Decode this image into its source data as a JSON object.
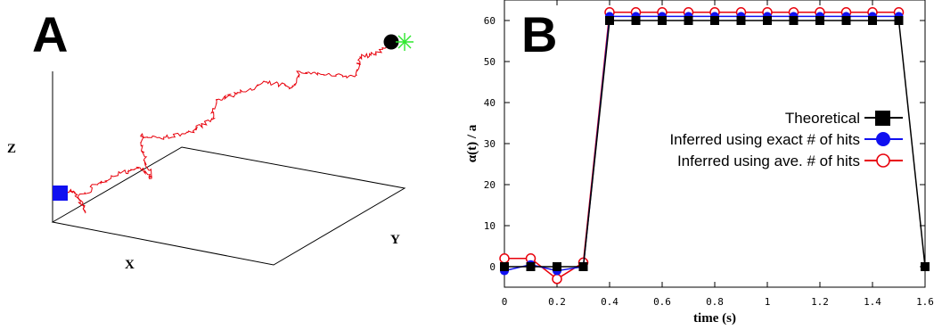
{
  "chart_data": [
    {
      "panel": "A",
      "type": "scatter",
      "title": "",
      "axis_labels": {
        "x": "X",
        "y": "Y",
        "z": "Z"
      },
      "trajectory_color": "#e8000b",
      "start_marker_color": "#1010f0",
      "end_marker_color": "#000000",
      "end_star_color": "#2ee82e"
    },
    {
      "panel": "B",
      "type": "line",
      "title": "",
      "xlabel": "time (s)",
      "ylabel": "α(t) / a",
      "xlim": [
        0,
        1.6
      ],
      "ylim": [
        -5,
        65
      ],
      "x_ticks": [
        0,
        0.2,
        0.4,
        0.6,
        0.8,
        1,
        1.2,
        1.4,
        1.6
      ],
      "x_tick_labels": [
        "0",
        "0.2",
        "0.4",
        "0.6",
        "0.8",
        "1",
        "1.2",
        "1.4",
        "1.6"
      ],
      "y_ticks": [
        0,
        10,
        20,
        30,
        40,
        50,
        60
      ],
      "y_tick_labels": [
        "0",
        "10",
        "20",
        "30",
        "40",
        "50",
        "60"
      ],
      "legend_position": "right",
      "series": [
        {
          "name": "Theoretical",
          "color": "#000000",
          "marker": "filled-square",
          "x": [
            0,
            0.1,
            0.2,
            0.3,
            0.4,
            0.5,
            0.6,
            0.7,
            0.8,
            0.9,
            1.0,
            1.1,
            1.2,
            1.3,
            1.4,
            1.5,
            1.6
          ],
          "y": [
            0,
            0,
            0,
            0,
            60,
            60,
            60,
            60,
            60,
            60,
            60,
            60,
            60,
            60,
            60,
            60,
            0
          ]
        },
        {
          "name": "Inferred using exact # of hits",
          "color": "#1010f0",
          "marker": "filled-circle",
          "x": [
            0,
            0.1,
            0.2,
            0.3,
            0.4,
            0.5,
            0.6,
            0.7,
            0.8,
            0.9,
            1.0,
            1.1,
            1.2,
            1.3,
            1.4,
            1.5
          ],
          "y": [
            -1,
            0.5,
            -1,
            0,
            61,
            61,
            61,
            61,
            61,
            61,
            61,
            61,
            61,
            61,
            61,
            61
          ]
        },
        {
          "name": "Inferred using ave. # of hits",
          "color": "#e8000b",
          "marker": "open-circle",
          "x": [
            0,
            0.1,
            0.2,
            0.3,
            0.4,
            0.5,
            0.6,
            0.7,
            0.8,
            0.9,
            1.0,
            1.1,
            1.2,
            1.3,
            1.4,
            1.5
          ],
          "y": [
            2,
            2,
            -3,
            1,
            62,
            62,
            62,
            62,
            62,
            62,
            62,
            62,
            62,
            62,
            62,
            62
          ]
        }
      ]
    }
  ]
}
